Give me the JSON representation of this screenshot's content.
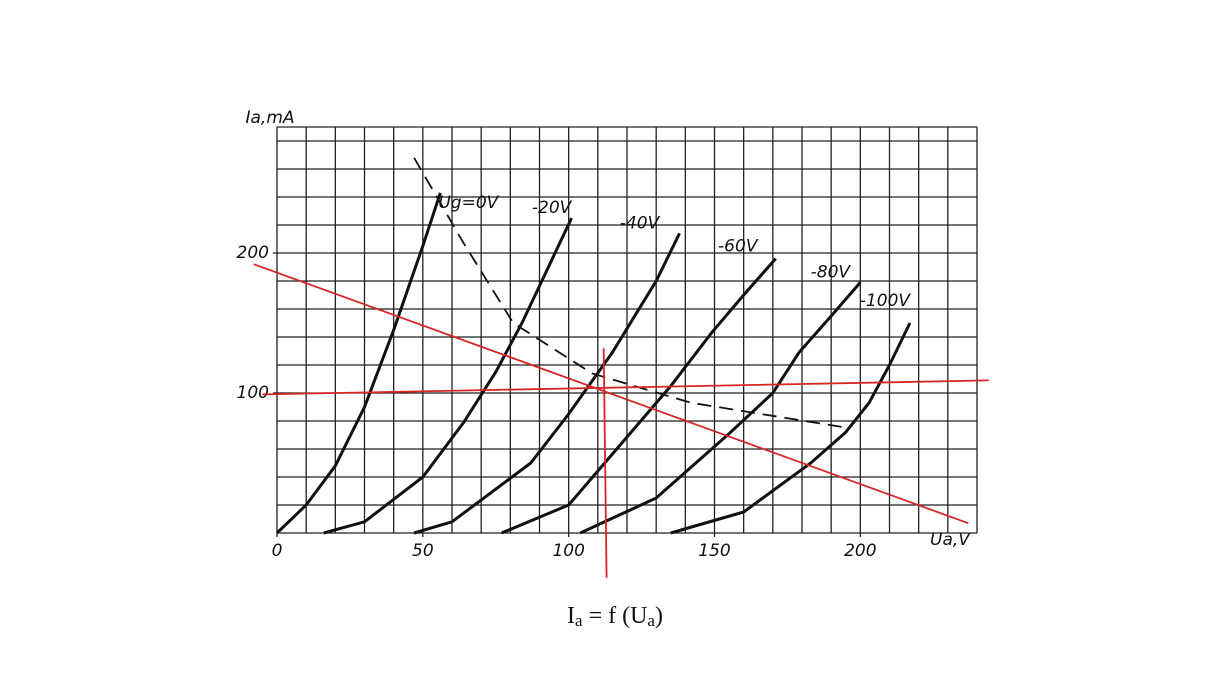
{
  "chart_data": {
    "type": "line",
    "x_label": "Ua,V",
    "y_label": "Ia,mA",
    "caption": [
      "I",
      "a",
      " = f (U",
      "a",
      ")"
    ],
    "xlim": [
      0,
      240
    ],
    "ylim": [
      0,
      290
    ],
    "xticks": [
      0,
      50,
      100,
      150,
      200
    ],
    "yticks": [
      100,
      200
    ],
    "grid": true,
    "grid_step": [
      10,
      20
    ],
    "series": [
      {
        "name": "Ug=0V",
        "color": "#111111",
        "x": [
          0,
          10,
          20,
          30,
          40,
          50,
          56
        ],
        "values": [
          0,
          20,
          48,
          90,
          145,
          205,
          243
        ]
      },
      {
        "name": "-20V",
        "color": "#111111",
        "x": [
          16,
          30,
          50,
          64,
          75,
          84,
          101
        ],
        "values": [
          0,
          8,
          40,
          79,
          115,
          150,
          225
        ]
      },
      {
        "name": "-40V",
        "color": "#111111",
        "x": [
          47,
          60,
          87,
          100,
          115,
          130,
          138
        ],
        "values": [
          0,
          8,
          50,
          85,
          129,
          180,
          214
        ]
      },
      {
        "name": "-60V",
        "color": "#111111",
        "x": [
          77,
          100,
          121,
          135,
          149,
          160,
          171
        ],
        "values": [
          0,
          20,
          71,
          105,
          143,
          170,
          196
        ]
      },
      {
        "name": "-80V",
        "color": "#111111",
        "x": [
          104,
          130,
          155,
          170,
          179,
          190,
          200
        ],
        "values": [
          0,
          25,
          71,
          100,
          129,
          155,
          179
        ]
      },
      {
        "name": "-100V",
        "color": "#111111",
        "x": [
          135,
          160,
          183,
          195,
          203,
          210,
          217
        ],
        "values": [
          0,
          15,
          50,
          72,
          93,
          120,
          150
        ]
      }
    ],
    "limit_curve": {
      "color": "#111111",
      "style": "dashed",
      "x": [
        47,
        64,
        81,
        108,
        142,
        196
      ],
      "values": [
        268,
        207,
        150,
        114,
        93,
        75
      ]
    },
    "overlay_lines": [
      {
        "color": "#d62626",
        "x": [
          -8,
          237
        ],
        "values": [
          192,
          7
        ]
      },
      {
        "color": "#d62626",
        "x": [
          -5,
          244
        ],
        "values": [
          99,
          109
        ]
      },
      {
        "color": "#d62626",
        "x": [
          112,
          113
        ],
        "values": [
          132,
          -32
        ]
      }
    ]
  }
}
